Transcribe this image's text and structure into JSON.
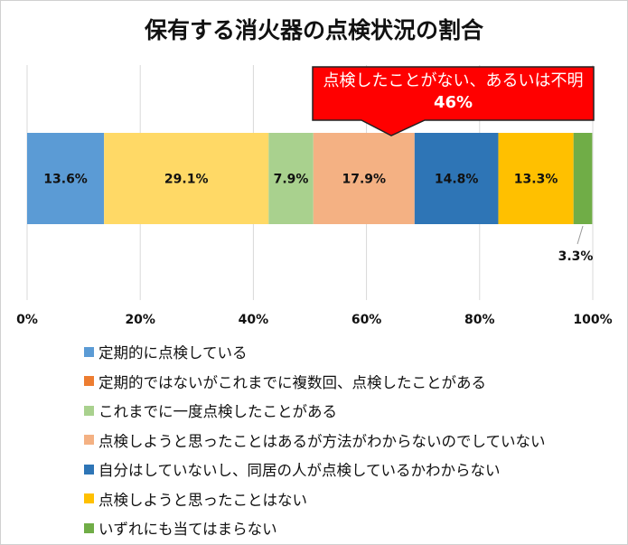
{
  "chart_data": {
    "type": "bar",
    "orientation": "horizontal-stacked-100",
    "title": "保有する消火器の点検状況の割合",
    "xlim": [
      0,
      100
    ],
    "x_ticks": [
      "0%",
      "20%",
      "40%",
      "60%",
      "80%",
      "100%"
    ],
    "grid": true,
    "legend_placement": "bottom",
    "series": [
      {
        "name": "定期的に点検している",
        "value": 13.6,
        "label": "13.6%",
        "color": "#5B9BD5",
        "legend_color": "#5B9BD5"
      },
      {
        "name": "定期的ではないがこれまでに複数回、点検したことがある",
        "value": 29.1,
        "label": "29.1%",
        "color": "#FFD966",
        "legend_color": "#ED7D31"
      },
      {
        "name": "これまでに一度点検したことがある",
        "value": 7.9,
        "label": "7.9%",
        "color": "#A9D18E",
        "legend_color": "#A9D18E"
      },
      {
        "name": "点検しようと思ったことはあるが方法がわからないのでしていない",
        "value": 17.9,
        "label": "17.9%",
        "color": "#F4B183",
        "legend_color": "#F4B183"
      },
      {
        "name": "自分はしていないし、同居の人が点検しているかわからない",
        "value": 14.8,
        "label": "14.8%",
        "color": "#2E75B6",
        "legend_color": "#2E75B6"
      },
      {
        "name": "点検しようと思ったことはない",
        "value": 13.3,
        "label": "13.3%",
        "color": "#FFC000",
        "legend_color": "#FFC000"
      },
      {
        "name": "いずれにも当てはまらない",
        "value": 3.3,
        "label": "3.3%",
        "color": "#70AD47",
        "legend_color": "#70AD47"
      }
    ],
    "annotation": {
      "text": "点検したことがない、あるいは不明",
      "value": "46%",
      "color": "#FF0000"
    }
  }
}
